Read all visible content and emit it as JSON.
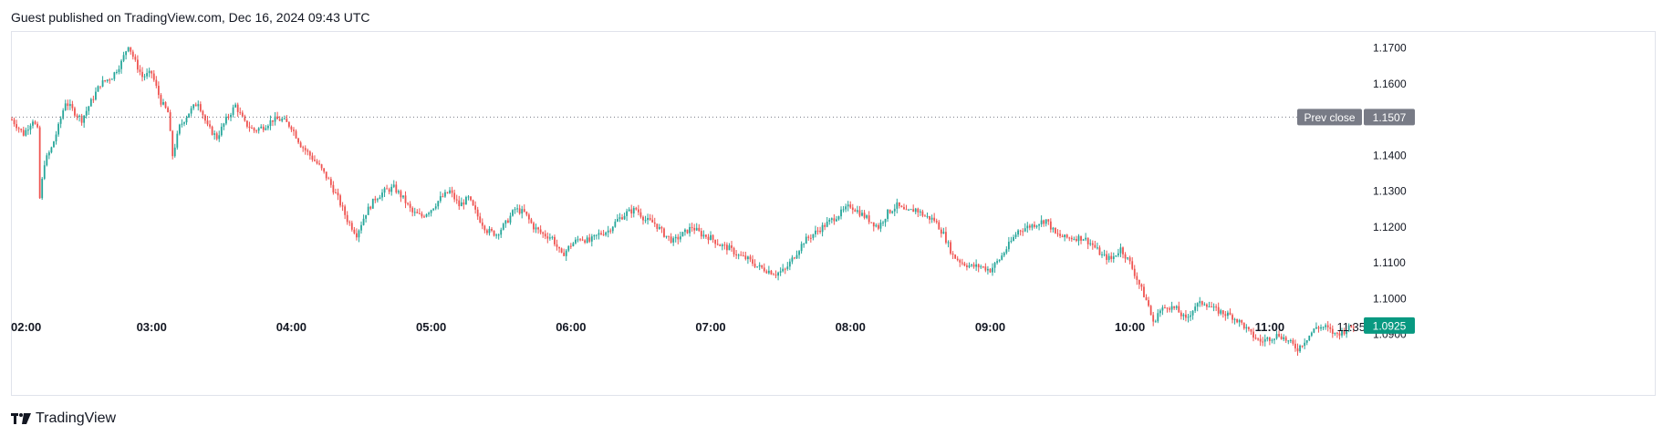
{
  "header": {
    "published_text": "Guest published on TradingView.com, Dec 16, 2024 09:43 UTC"
  },
  "footer": {
    "brand_name": "TradingView"
  },
  "colors": {
    "up": "#26a69a",
    "down": "#ef5350",
    "prev_close_badge": "#787b86",
    "last_price_badge": "#089981",
    "axis_text": "#131722",
    "border": "#e0e3eb",
    "dotted_line": "#787b86"
  },
  "chart_data": {
    "type": "candlestick",
    "title": "",
    "xlabel": "",
    "ylabel": "",
    "grid": false,
    "ylim": [
      1.0815,
      1.1745
    ],
    "x_tick_labels": [
      "02:00",
      "03:00",
      "04:00",
      "05:00",
      "06:00",
      "07:00",
      "08:00",
      "09:00",
      "10:00",
      "11:00",
      "11:35"
    ],
    "x_tick_minutes": [
      0,
      60,
      120,
      180,
      240,
      300,
      360,
      420,
      480,
      540,
      575
    ],
    "x_range_minutes": [
      0,
      580
    ],
    "y_ticks": [
      "1.1700",
      "1.1600",
      "1.1400",
      "1.1300",
      "1.1200",
      "1.1100",
      "1.1000",
      "1.0900"
    ],
    "prev_close": {
      "label": "Prev close",
      "value": "1.1507"
    },
    "last_price": {
      "value": "1.0925"
    },
    "close_path": [
      [
        0,
        1.15
      ],
      [
        5,
        1.146
      ],
      [
        9,
        1.15
      ],
      [
        11,
        1.147
      ],
      [
        12,
        1.128
      ],
      [
        14,
        1.138
      ],
      [
        17,
        1.142
      ],
      [
        20,
        1.148
      ],
      [
        23,
        1.155
      ],
      [
        27,
        1.152
      ],
      [
        30,
        1.15
      ],
      [
        34,
        1.155
      ],
      [
        38,
        1.16
      ],
      [
        43,
        1.162
      ],
      [
        47,
        1.166
      ],
      [
        50,
        1.171
      ],
      [
        53,
        1.166
      ],
      [
        56,
        1.162
      ],
      [
        60,
        1.163
      ],
      [
        64,
        1.155
      ],
      [
        67,
        1.152
      ],
      [
        69,
        1.14
      ],
      [
        72,
        1.148
      ],
      [
        76,
        1.152
      ],
      [
        80,
        1.155
      ],
      [
        84,
        1.148
      ],
      [
        88,
        1.145
      ],
      [
        92,
        1.15
      ],
      [
        96,
        1.154
      ],
      [
        100,
        1.149
      ],
      [
        104,
        1.147
      ],
      [
        108,
        1.148
      ],
      [
        112,
        1.15
      ],
      [
        116,
        1.15
      ],
      [
        120,
        1.148
      ],
      [
        124,
        1.143
      ],
      [
        128,
        1.14
      ],
      [
        132,
        1.137
      ],
      [
        136,
        1.133
      ],
      [
        140,
        1.128
      ],
      [
        144,
        1.122
      ],
      [
        148,
        1.118
      ],
      [
        152,
        1.124
      ],
      [
        156,
        1.128
      ],
      [
        160,
        1.13
      ],
      [
        164,
        1.131
      ],
      [
        168,
        1.128
      ],
      [
        172,
        1.124
      ],
      [
        176,
        1.123
      ],
      [
        180,
        1.125
      ],
      [
        184,
        1.128
      ],
      [
        188,
        1.13
      ],
      [
        192,
        1.126
      ],
      [
        196,
        1.128
      ],
      [
        200,
        1.123
      ],
      [
        204,
        1.119
      ],
      [
        208,
        1.118
      ],
      [
        212,
        1.121
      ],
      [
        216,
        1.125
      ],
      [
        220,
        1.124
      ],
      [
        224,
        1.12
      ],
      [
        228,
        1.118
      ],
      [
        232,
        1.117
      ],
      [
        236,
        1.112
      ],
      [
        240,
        1.115
      ],
      [
        244,
        1.117
      ],
      [
        248,
        1.116
      ],
      [
        252,
        1.118
      ],
      [
        256,
        1.119
      ],
      [
        260,
        1.122
      ],
      [
        264,
        1.124
      ],
      [
        268,
        1.125
      ],
      [
        272,
        1.122
      ],
      [
        276,
        1.121
      ],
      [
        280,
        1.118
      ],
      [
        284,
        1.116
      ],
      [
        288,
        1.118
      ],
      [
        292,
        1.12
      ],
      [
        296,
        1.118
      ],
      [
        300,
        1.117
      ],
      [
        304,
        1.115
      ],
      [
        308,
        1.114
      ],
      [
        312,
        1.112
      ],
      [
        316,
        1.111
      ],
      [
        320,
        1.109
      ],
      [
        324,
        1.108
      ],
      [
        328,
        1.107
      ],
      [
        332,
        1.108
      ],
      [
        336,
        1.112
      ],
      [
        340,
        1.116
      ],
      [
        344,
        1.118
      ],
      [
        348,
        1.12
      ],
      [
        352,
        1.122
      ],
      [
        356,
        1.124
      ],
      [
        360,
        1.126
      ],
      [
        364,
        1.124
      ],
      [
        368,
        1.122
      ],
      [
        372,
        1.12
      ],
      [
        376,
        1.124
      ],
      [
        380,
        1.126
      ],
      [
        384,
        1.124
      ],
      [
        388,
        1.125
      ],
      [
        392,
        1.123
      ],
      [
        396,
        1.122
      ],
      [
        400,
        1.118
      ],
      [
        404,
        1.112
      ],
      [
        408,
        1.11
      ],
      [
        412,
        1.109
      ],
      [
        416,
        1.109
      ],
      [
        420,
        1.108
      ],
      [
        424,
        1.111
      ],
      [
        428,
        1.115
      ],
      [
        432,
        1.119
      ],
      [
        436,
        1.12
      ],
      [
        440,
        1.121
      ],
      [
        444,
        1.122
      ],
      [
        448,
        1.118
      ],
      [
        452,
        1.117
      ],
      [
        456,
        1.117
      ],
      [
        460,
        1.117
      ],
      [
        464,
        1.115
      ],
      [
        468,
        1.112
      ],
      [
        472,
        1.111
      ],
      [
        476,
        1.114
      ],
      [
        480,
        1.11
      ],
      [
        484,
        1.104
      ],
      [
        488,
        1.098
      ],
      [
        490,
        1.093
      ],
      [
        492,
        1.096
      ],
      [
        496,
        1.098
      ],
      [
        500,
        1.097
      ],
      [
        504,
        1.094
      ],
      [
        508,
        1.098
      ],
      [
        512,
        1.099
      ],
      [
        516,
        1.097
      ],
      [
        520,
        1.096
      ],
      [
        524,
        1.095
      ],
      [
        528,
        1.093
      ],
      [
        532,
        1.09
      ],
      [
        536,
        1.088
      ],
      [
        540,
        1.089
      ],
      [
        544,
        1.09
      ],
      [
        548,
        1.088
      ],
      [
        552,
        1.086
      ],
      [
        556,
        1.089
      ],
      [
        560,
        1.092
      ],
      [
        564,
        1.092
      ],
      [
        568,
        1.09
      ],
      [
        572,
        1.091
      ],
      [
        576,
        1.0925
      ]
    ]
  }
}
